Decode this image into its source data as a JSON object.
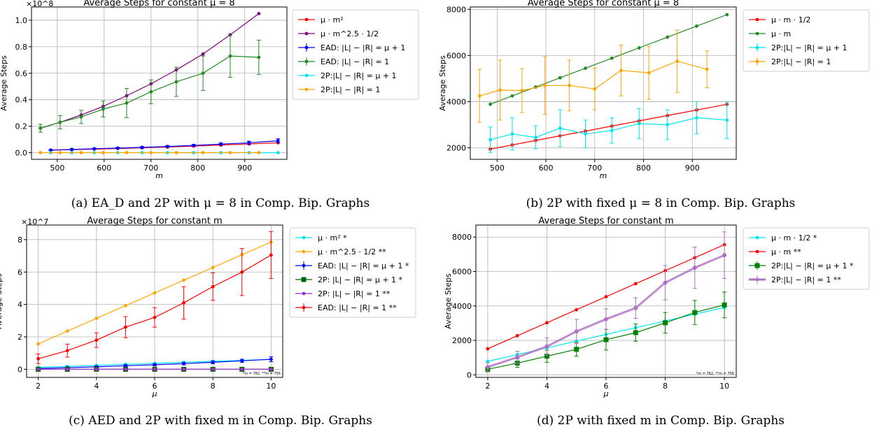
{
  "figure": {
    "captions": [
      "(a) EA_D and 2P with μ = 8 in Comp. Bip. Graphs",
      "(b) 2P with fixed μ = 8 in Comp. Bip. Graphs",
      "(c) AED and 2P with fixed m in Comp. Bip. Graphs",
      "(d) 2P with fixed m in Comp. Bip. Graphs"
    ]
  },
  "chart_data": [
    {
      "type": "line",
      "title": "Average Steps for constant μ = 8",
      "xlabel": "m",
      "ylabel": "Average Steps",
      "scale_note": "×10^8",
      "xlim": [
        445,
        990
      ],
      "ylim": [
        -0.05,
        1.1
      ],
      "xticks": [
        500,
        600,
        700,
        800,
        900
      ],
      "yticks": [
        0.0,
        0.2,
        0.4,
        0.6,
        0.8,
        1.0
      ],
      "ytick_labels": [
        "0.0",
        "0.2",
        "0.4",
        "0.6",
        "0.8",
        "1.0"
      ],
      "grid": true,
      "legend": "right",
      "series": [
        {
          "name": "μ · m²",
          "color": "#ff0000",
          "marker": "circle",
          "x": [
            486,
            531,
            579,
            629,
            681,
            735,
            791,
            849,
            909,
            971
          ],
          "y": [
            0.019,
            0.023,
            0.027,
            0.032,
            0.037,
            0.043,
            0.05,
            0.058,
            0.066,
            0.075
          ]
        },
        {
          "name": "μ · m^2.5 · 1/2",
          "color": "#800080",
          "marker": "circle",
          "x": [
            464,
            506,
            551,
            598,
            648,
            700,
            754,
            811,
            869,
            930
          ],
          "y": [
            0.185,
            0.23,
            0.285,
            0.35,
            0.43,
            0.52,
            0.625,
            0.745,
            0.89,
            1.05
          ]
        },
        {
          "name": "EAD: |L| − |R| = μ + 1",
          "color": "#0000ff",
          "marker": "circle",
          "errorbar": true,
          "x": [
            486,
            531,
            579,
            629,
            681,
            735,
            791,
            849,
            909,
            971
          ],
          "y": [
            0.02,
            0.025,
            0.03,
            0.035,
            0.04,
            0.047,
            0.055,
            0.065,
            0.075,
            0.09
          ],
          "err": [
            0.003,
            0.004,
            0.004,
            0.005,
            0.006,
            0.007,
            0.008,
            0.01,
            0.012,
            0.015
          ]
        },
        {
          "name": "EAD: |L| − |R| = 1",
          "color": "#228b22",
          "marker": "circle",
          "errorbar": true,
          "x": [
            464,
            506,
            551,
            598,
            648,
            700,
            754,
            811,
            869,
            930
          ],
          "y": [
            0.185,
            0.23,
            0.27,
            0.33,
            0.375,
            0.46,
            0.535,
            0.6,
            0.73,
            0.72
          ],
          "err": [
            0.03,
            0.05,
            0.05,
            0.06,
            0.11,
            0.09,
            0.11,
            0.13,
            0.16,
            0.13
          ]
        },
        {
          "name": "2P:|L| − |R| = μ + 1",
          "color": "#00e5ee",
          "marker": "circle",
          "x": [
            486,
            531,
            579,
            629,
            681,
            735,
            791,
            849,
            909,
            971
          ],
          "y": [
            0.0002,
            0.0002,
            0.0003,
            0.0003,
            0.0003,
            0.0003,
            0.0003,
            0.0003,
            0.0003,
            0.0003
          ]
        },
        {
          "name": "2P:|L| − |R| = 1",
          "color": "#ffa500",
          "marker": "circle",
          "x": [
            464,
            506,
            551,
            598,
            648,
            700,
            754,
            811,
            869,
            930
          ],
          "y": [
            0.0004,
            0.0004,
            0.0005,
            0.0005,
            0.0005,
            0.0005,
            0.0005,
            0.0005,
            0.0006,
            0.0005
          ]
        }
      ]
    },
    {
      "type": "line",
      "title": "Average Steps for constant μ = 8",
      "xlabel": "m",
      "ylabel": "Average Steps",
      "scale_note": "",
      "xlim": [
        445,
        990
      ],
      "ylim": [
        1500,
        8100
      ],
      "xticks": [
        500,
        600,
        700,
        800,
        900
      ],
      "yticks": [
        2000,
        4000,
        6000,
        8000
      ],
      "ytick_labels": [
        "2000",
        "4000",
        "6000",
        "8000"
      ],
      "grid": true,
      "legend": "right",
      "series": [
        {
          "name": "μ · m · 1/2",
          "color": "#ff0000",
          "marker": "circle",
          "x": [
            486,
            531,
            579,
            629,
            681,
            735,
            791,
            849,
            909,
            971
          ],
          "y": [
            1944,
            2124,
            2316,
            2516,
            2724,
            2940,
            3164,
            3396,
            3636,
            3884
          ]
        },
        {
          "name": "μ · m",
          "color": "#228b22",
          "marker": "circle",
          "x": [
            486,
            531,
            579,
            629,
            681,
            735,
            791,
            849,
            909,
            971
          ],
          "y": [
            3888,
            4248,
            4632,
            5032,
            5448,
            5880,
            6328,
            6792,
            7272,
            7768
          ]
        },
        {
          "name": "2P:|L| − |R| = μ + 1",
          "color": "#00e5ee",
          "marker": "circle",
          "errorbar": true,
          "x": [
            486,
            531,
            579,
            629,
            681,
            735,
            791,
            849,
            909,
            971
          ],
          "y": [
            2350,
            2600,
            2450,
            2850,
            2600,
            2750,
            3050,
            3000,
            3300,
            3200
          ],
          "err": [
            550,
            700,
            500,
            800,
            600,
            550,
            650,
            650,
            700,
            800
          ]
        },
        {
          "name": "2P:|L| − |R| = 1",
          "color": "#ffa500",
          "marker": "circle",
          "errorbar": true,
          "x": [
            464,
            506,
            551,
            598,
            648,
            700,
            754,
            811,
            869,
            930
          ],
          "y": [
            4250,
            4500,
            4480,
            4700,
            4700,
            4550,
            5350,
            5250,
            5750,
            5400
          ],
          "err": [
            1150,
            1300,
            950,
            1250,
            1100,
            900,
            1100,
            1150,
            1350,
            800
          ]
        }
      ]
    },
    {
      "type": "line",
      "title": "Average Steps for constant m",
      "xlabel": "μ",
      "ylabel": "Average Steps",
      "scale_note": "×10^7",
      "note": "*m = 782, **m = 756",
      "xlim": [
        1.6,
        10.4
      ],
      "ylim": [
        -0.5,
        8.9
      ],
      "xticks": [
        2,
        4,
        6,
        8,
        10
      ],
      "yticks": [
        0,
        2,
        4,
        6,
        8
      ],
      "ytick_labels": [
        "0",
        "2",
        "4",
        "6",
        "8"
      ],
      "grid": true,
      "legend": "right",
      "series": [
        {
          "name": "μ · m² *",
          "color": "#00e5ee",
          "marker": "circle",
          "x": [
            2,
            3,
            4,
            5,
            6,
            7,
            8,
            9,
            10
          ],
          "y": [
            0.12,
            0.18,
            0.24,
            0.31,
            0.37,
            0.43,
            0.49,
            0.55,
            0.61
          ]
        },
        {
          "name": "μ · m^2.5 · 1/2 **",
          "color": "#ffa500",
          "marker": "circle",
          "x": [
            2,
            3,
            4,
            5,
            6,
            7,
            8,
            9,
            10
          ],
          "y": [
            1.57,
            2.36,
            3.14,
            3.93,
            4.71,
            5.5,
            6.28,
            7.07,
            7.85
          ]
        },
        {
          "name": "EAD: |L| − |R| = μ + 1 *",
          "color": "#0000ff",
          "marker": "circle",
          "errorbar": true,
          "x": [
            2,
            3,
            4,
            5,
            6,
            7,
            8,
            9,
            10
          ],
          "y": [
            0.05,
            0.1,
            0.15,
            0.22,
            0.28,
            0.35,
            0.43,
            0.52,
            0.62
          ],
          "err": [
            0.03,
            0.04,
            0.05,
            0.06,
            0.07,
            0.08,
            0.09,
            0.1,
            0.15
          ]
        },
        {
          "name": "2P: |L| − |R| = μ + 1 *",
          "color": "#006400",
          "marker": "square",
          "x": [
            2,
            3,
            4,
            5,
            6,
            7,
            8,
            9,
            10
          ],
          "y": [
            0.0001,
            0.0001,
            0.0001,
            0.0001,
            0.0002,
            0.0002,
            0.0003,
            0.0003,
            0.0004
          ]
        },
        {
          "name": "2P: |L| − |R| = 1 **",
          "color": "#9932cc",
          "marker": "circle",
          "x": [
            2,
            3,
            4,
            5,
            6,
            7,
            8,
            9,
            10
          ],
          "y": [
            0.0001,
            0.0001,
            0.0002,
            0.0003,
            0.0003,
            0.0004,
            0.0005,
            0.0006,
            0.0007
          ]
        },
        {
          "name": "EAD: |L| − |R| = 1 **",
          "color": "#ff0000",
          "marker": "circle",
          "errorbar": true,
          "x": [
            2,
            3,
            4,
            5,
            6,
            7,
            8,
            9,
            10
          ],
          "y": [
            0.65,
            1.15,
            1.8,
            2.6,
            3.2,
            4.1,
            5.1,
            6.0,
            7.05
          ],
          "err": [
            0.3,
            0.4,
            0.45,
            0.65,
            0.6,
            1.0,
            0.85,
            1.45,
            1.45
          ]
        }
      ]
    },
    {
      "type": "line",
      "title": "Average Steps for constant m",
      "xlabel": "μ",
      "ylabel": "Average Steps",
      "scale_note": "",
      "note": "*m = 782, **m = 756",
      "xlim": [
        1.6,
        10.4
      ],
      "ylim": [
        -150,
        8700
      ],
      "xticks": [
        2,
        4,
        6,
        8,
        10
      ],
      "yticks": [
        0,
        2000,
        4000,
        6000,
        8000
      ],
      "ytick_labels": [
        "0",
        "2000",
        "4000",
        "6000",
        "8000"
      ],
      "grid": true,
      "legend": "right",
      "series": [
        {
          "name": "μ · m · 1/2 *",
          "color": "#00e5ee",
          "marker": "circle",
          "x": [
            2,
            3,
            4,
            5,
            6,
            7,
            8,
            9,
            10
          ],
          "y": [
            782,
            1173,
            1564,
            1955,
            2346,
            2737,
            3128,
            3519,
            3910
          ]
        },
        {
          "name": "μ · m **",
          "color": "#ff0000",
          "marker": "circle",
          "x": [
            2,
            3,
            4,
            5,
            6,
            7,
            8,
            9,
            10
          ],
          "y": [
            1512,
            2268,
            3024,
            3780,
            4536,
            5292,
            6048,
            6804,
            7560
          ]
        },
        {
          "name": "2P:|L| − |R| = μ + 1 *",
          "color": "#008000",
          "marker": "square",
          "errorbar": true,
          "x": [
            2,
            3,
            4,
            5,
            6,
            7,
            8,
            9,
            10
          ],
          "y": [
            320,
            680,
            1080,
            1480,
            2040,
            2450,
            3020,
            3620,
            4060
          ],
          "err": [
            150,
            250,
            350,
            400,
            600,
            500,
            600,
            700,
            750
          ]
        },
        {
          "name": "2P:|L| − |R| = 1 **",
          "color": "#b06fc0",
          "marker": "circle",
          "errorbar": true,
          "thick": true,
          "x": [
            2,
            3,
            4,
            5,
            6,
            7,
            8,
            9,
            10
          ],
          "y": [
            450,
            1020,
            1650,
            2520,
            3230,
            3880,
            5350,
            6220,
            6950
          ],
          "err": [
            250,
            350,
            500,
            700,
            600,
            600,
            1000,
            1200,
            1350
          ]
        }
      ]
    }
  ]
}
